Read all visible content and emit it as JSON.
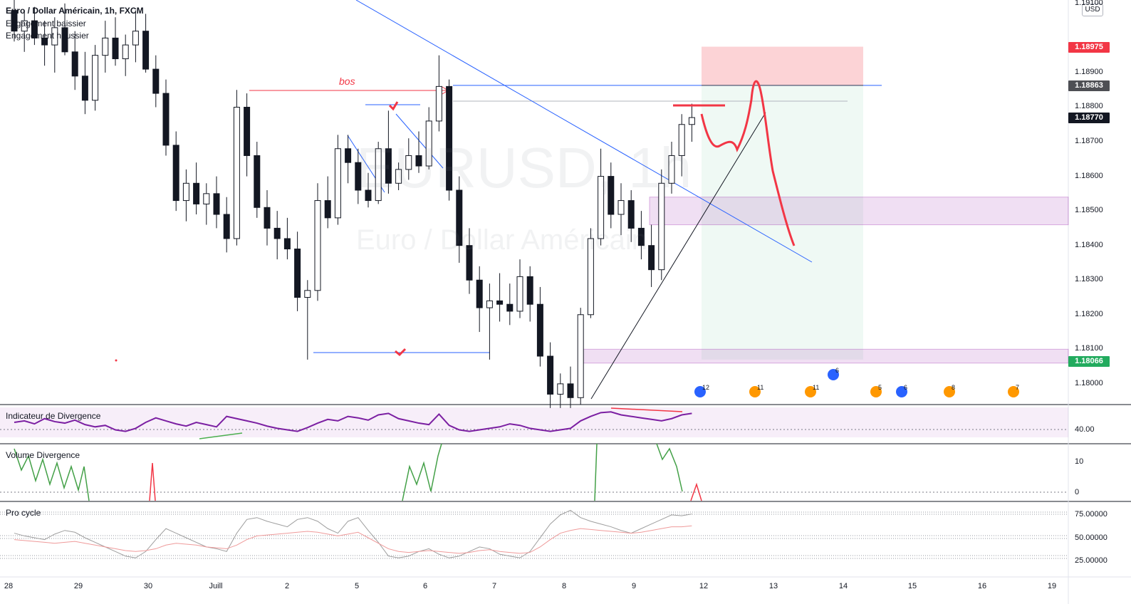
{
  "legend": {
    "title": "Euro / Dollar Américain, 1h, FXCM",
    "line2": "Engagement baissier",
    "line3": "Engagement haussier"
  },
  "watermark": {
    "symbol": "EURUSD, 1h",
    "name": "Euro / Dollar Américain"
  },
  "currency": "USD",
  "annotation": {
    "bos": "bos"
  },
  "price_tags": [
    {
      "label": "1.18975",
      "color": "#f23645"
    },
    {
      "label": "1.18863",
      "color": "#4e4f54"
    },
    {
      "label": "1.18770",
      "color": "#131722"
    },
    {
      "label": "1.18066",
      "color": "#22ab5e"
    }
  ],
  "panes": {
    "divergence": {
      "title": "Indicateur de Divergence",
      "level": "40.00"
    },
    "volume": {
      "title": "Volume Divergence",
      "levels": [
        "10",
        "0"
      ]
    },
    "procycle": {
      "title": "Pro cycle",
      "levels": [
        "75.00000",
        "50.00000",
        "25.00000"
      ]
    }
  },
  "events": [
    {
      "count": "12",
      "color": "#2962ff"
    },
    {
      "count": "11",
      "color": "#ff9800"
    },
    {
      "count": "11",
      "color": "#ff9800"
    },
    {
      "count": "6",
      "color": "#2962ff"
    },
    {
      "count": "5",
      "color": "#ff9800"
    },
    {
      "count": "6",
      "color": "#2962ff"
    },
    {
      "count": "8",
      "color": "#ff9800"
    },
    {
      "count": "7",
      "color": "#ff9800"
    }
  ],
  "chart_data": {
    "type": "candlestick",
    "symbol": "EURUSD",
    "timeframe": "1h",
    "y_axis": {
      "ticks": [
        "1.18000",
        "1.18100",
        "1.18200",
        "1.18300",
        "1.18400",
        "1.18500",
        "1.18600",
        "1.18700",
        "1.18800",
        "1.18900",
        "1.19100"
      ],
      "ylim": [
        1.1794,
        1.1911
      ]
    },
    "x_axis": {
      "ticks": [
        "28",
        "29",
        "30",
        "Juill",
        "2",
        "5",
        "6",
        "7",
        "8",
        "9",
        "12",
        "13",
        "14",
        "15",
        "16",
        "19"
      ]
    },
    "series": [
      {
        "x": 0,
        "o": 1.1908,
        "h": 1.1911,
        "l": 1.1899,
        "c": 1.1902
      },
      {
        "x": 1,
        "o": 1.1902,
        "h": 1.1908,
        "l": 1.1896,
        "c": 1.1905
      },
      {
        "x": 2,
        "o": 1.1905,
        "h": 1.1909,
        "l": 1.1898,
        "c": 1.19
      },
      {
        "x": 3,
        "o": 1.19,
        "h": 1.1905,
        "l": 1.1892,
        "c": 1.1898
      },
      {
        "x": 4,
        "o": 1.1898,
        "h": 1.1906,
        "l": 1.189,
        "c": 1.1903
      },
      {
        "x": 5,
        "o": 1.1903,
        "h": 1.191,
        "l": 1.1895,
        "c": 1.1896
      },
      {
        "x": 6,
        "o": 1.1896,
        "h": 1.1902,
        "l": 1.1885,
        "c": 1.1889
      },
      {
        "x": 7,
        "o": 1.1889,
        "h": 1.1896,
        "l": 1.1878,
        "c": 1.1882
      },
      {
        "x": 8,
        "o": 1.1882,
        "h": 1.1898,
        "l": 1.1879,
        "c": 1.1895
      },
      {
        "x": 9,
        "o": 1.1895,
        "h": 1.1905,
        "l": 1.189,
        "c": 1.19
      },
      {
        "x": 10,
        "o": 1.19,
        "h": 1.1906,
        "l": 1.1892,
        "c": 1.1894
      },
      {
        "x": 11,
        "o": 1.1894,
        "h": 1.1901,
        "l": 1.1889,
        "c": 1.1898
      },
      {
        "x": 12,
        "o": 1.1898,
        "h": 1.1908,
        "l": 1.1893,
        "c": 1.1902
      },
      {
        "x": 13,
        "o": 1.1902,
        "h": 1.1907,
        "l": 1.189,
        "c": 1.1891
      },
      {
        "x": 14,
        "o": 1.1891,
        "h": 1.1895,
        "l": 1.188,
        "c": 1.1884
      },
      {
        "x": 15,
        "o": 1.1884,
        "h": 1.1888,
        "l": 1.1866,
        "c": 1.1869
      },
      {
        "x": 16,
        "o": 1.1869,
        "h": 1.1873,
        "l": 1.185,
        "c": 1.1853
      },
      {
        "x": 17,
        "o": 1.1853,
        "h": 1.1862,
        "l": 1.1847,
        "c": 1.1858
      },
      {
        "x": 18,
        "o": 1.1858,
        "h": 1.1864,
        "l": 1.1849,
        "c": 1.1852
      },
      {
        "x": 19,
        "o": 1.1852,
        "h": 1.1858,
        "l": 1.1846,
        "c": 1.1855
      },
      {
        "x": 20,
        "o": 1.1855,
        "h": 1.186,
        "l": 1.1845,
        "c": 1.1849
      },
      {
        "x": 21,
        "o": 1.1849,
        "h": 1.1854,
        "l": 1.1838,
        "c": 1.1842
      },
      {
        "x": 22,
        "o": 1.1842,
        "h": 1.1885,
        "l": 1.184,
        "c": 1.188
      },
      {
        "x": 23,
        "o": 1.188,
        "h": 1.1884,
        "l": 1.186,
        "c": 1.1866
      },
      {
        "x": 24,
        "o": 1.1866,
        "h": 1.187,
        "l": 1.1848,
        "c": 1.1851
      },
      {
        "x": 25,
        "o": 1.1851,
        "h": 1.1856,
        "l": 1.184,
        "c": 1.1845
      },
      {
        "x": 26,
        "o": 1.1845,
        "h": 1.185,
        "l": 1.1836,
        "c": 1.1842
      },
      {
        "x": 27,
        "o": 1.1842,
        "h": 1.1848,
        "l": 1.1836,
        "c": 1.1839
      },
      {
        "x": 28,
        "o": 1.1839,
        "h": 1.1844,
        "l": 1.1821,
        "c": 1.1825
      },
      {
        "x": 29,
        "o": 1.1825,
        "h": 1.183,
        "l": 1.1807,
        "c": 1.1827
      },
      {
        "x": 30,
        "o": 1.1827,
        "h": 1.1858,
        "l": 1.1824,
        "c": 1.1853
      },
      {
        "x": 31,
        "o": 1.1853,
        "h": 1.186,
        "l": 1.1845,
        "c": 1.1848
      },
      {
        "x": 32,
        "o": 1.1848,
        "h": 1.1872,
        "l": 1.1846,
        "c": 1.1868
      },
      {
        "x": 33,
        "o": 1.1868,
        "h": 1.1872,
        "l": 1.1858,
        "c": 1.1864
      },
      {
        "x": 34,
        "o": 1.1864,
        "h": 1.1868,
        "l": 1.1852,
        "c": 1.1856
      },
      {
        "x": 35,
        "o": 1.1856,
        "h": 1.1861,
        "l": 1.1851,
        "c": 1.1853
      },
      {
        "x": 36,
        "o": 1.1853,
        "h": 1.187,
        "l": 1.1852,
        "c": 1.1868
      },
      {
        "x": 37,
        "o": 1.1868,
        "h": 1.1879,
        "l": 1.1855,
        "c": 1.1858
      },
      {
        "x": 38,
        "o": 1.1858,
        "h": 1.1864,
        "l": 1.1856,
        "c": 1.1862
      },
      {
        "x": 39,
        "o": 1.1862,
        "h": 1.1871,
        "l": 1.1859,
        "c": 1.1866
      },
      {
        "x": 40,
        "o": 1.1866,
        "h": 1.1873,
        "l": 1.1861,
        "c": 1.1863
      },
      {
        "x": 41,
        "o": 1.1863,
        "h": 1.188,
        "l": 1.1862,
        "c": 1.1876
      },
      {
        "x": 42,
        "o": 1.1876,
        "h": 1.1895,
        "l": 1.1873,
        "c": 1.1886
      },
      {
        "x": 43,
        "o": 1.1886,
        "h": 1.1888,
        "l": 1.1853,
        "c": 1.1856
      },
      {
        "x": 44,
        "o": 1.1856,
        "h": 1.186,
        "l": 1.1835,
        "c": 1.184
      },
      {
        "x": 45,
        "o": 1.184,
        "h": 1.1845,
        "l": 1.1826,
        "c": 1.183
      },
      {
        "x": 46,
        "o": 1.183,
        "h": 1.1834,
        "l": 1.1815,
        "c": 1.1822
      },
      {
        "x": 47,
        "o": 1.1822,
        "h": 1.1829,
        "l": 1.1807,
        "c": 1.1824
      },
      {
        "x": 48,
        "o": 1.1824,
        "h": 1.1832,
        "l": 1.1818,
        "c": 1.1823
      },
      {
        "x": 49,
        "o": 1.1823,
        "h": 1.1829,
        "l": 1.1817,
        "c": 1.1821
      },
      {
        "x": 50,
        "o": 1.1821,
        "h": 1.1836,
        "l": 1.1819,
        "c": 1.1831
      },
      {
        "x": 51,
        "o": 1.1831,
        "h": 1.1834,
        "l": 1.1818,
        "c": 1.1823
      },
      {
        "x": 52,
        "o": 1.1823,
        "h": 1.1828,
        "l": 1.1805,
        "c": 1.1808
      },
      {
        "x": 53,
        "o": 1.1808,
        "h": 1.1812,
        "l": 1.1793,
        "c": 1.1797
      },
      {
        "x": 54,
        "o": 1.1797,
        "h": 1.1803,
        "l": 1.1793,
        "c": 1.18
      },
      {
        "x": 55,
        "o": 1.18,
        "h": 1.1805,
        "l": 1.1793,
        "c": 1.1796
      },
      {
        "x": 56,
        "o": 1.1796,
        "h": 1.1822,
        "l": 1.1794,
        "c": 1.182
      },
      {
        "x": 57,
        "o": 1.182,
        "h": 1.1845,
        "l": 1.1819,
        "c": 1.1842
      },
      {
        "x": 58,
        "o": 1.1842,
        "h": 1.1868,
        "l": 1.184,
        "c": 1.186
      },
      {
        "x": 59,
        "o": 1.186,
        "h": 1.1864,
        "l": 1.1845,
        "c": 1.1849
      },
      {
        "x": 60,
        "o": 1.1849,
        "h": 1.1858,
        "l": 1.1843,
        "c": 1.1853
      },
      {
        "x": 61,
        "o": 1.1853,
        "h": 1.1856,
        "l": 1.1841,
        "c": 1.1845
      },
      {
        "x": 62,
        "o": 1.1845,
        "h": 1.185,
        "l": 1.1836,
        "c": 1.184
      },
      {
        "x": 63,
        "o": 1.184,
        "h": 1.1846,
        "l": 1.1828,
        "c": 1.1833
      },
      {
        "x": 64,
        "o": 1.1833,
        "h": 1.1862,
        "l": 1.183,
        "c": 1.1858
      },
      {
        "x": 65,
        "o": 1.1858,
        "h": 1.187,
        "l": 1.1855,
        "c": 1.1866
      },
      {
        "x": 66,
        "o": 1.1866,
        "h": 1.1878,
        "l": 1.186,
        "c": 1.1875
      },
      {
        "x": 67,
        "o": 1.1875,
        "h": 1.1881,
        "l": 1.187,
        "c": 1.1877
      }
    ],
    "horizontal_levels": [
      {
        "name": "resistance",
        "value": 1.18863
      },
      {
        "name": "support",
        "value": 1.1807
      }
    ],
    "zones": [
      {
        "name": "stop-loss-zone",
        "from": 1.18863,
        "to": 1.18975,
        "color": "#f23645"
      },
      {
        "name": "take-profit-zone",
        "from": 1.1807,
        "to": 1.18863,
        "color": "#22ab5e"
      },
      {
        "name": "supply-zone",
        "from": 1.1846,
        "to": 1.1854,
        "color": "#9c27b0"
      },
      {
        "name": "demand-zone",
        "from": 1.1806,
        "to": 1.181,
        "color": "#9c27b0"
      }
    ],
    "indicators": {
      "divergence": [
        50,
        52,
        48,
        55,
        51,
        49,
        53,
        47,
        44,
        46,
        40,
        38,
        42,
        50,
        56,
        52,
        48,
        45,
        50,
        47,
        44,
        58,
        55,
        52,
        49,
        45,
        42,
        40,
        38,
        43,
        49,
        54,
        52,
        58,
        56,
        53,
        60,
        62,
        55,
        52,
        49,
        47,
        61,
        46,
        40,
        38,
        40,
        42,
        44,
        48,
        46,
        42,
        40,
        38,
        40,
        42,
        52,
        58,
        63,
        64,
        60,
        58,
        56,
        54,
        52,
        55,
        60,
        62
      ],
      "procycle_gray": [
        55,
        52,
        50,
        48,
        54,
        58,
        56,
        50,
        45,
        40,
        35,
        30,
        28,
        35,
        48,
        60,
        55,
        50,
        45,
        40,
        38,
        35,
        55,
        70,
        72,
        68,
        65,
        62,
        70,
        72,
        68,
        60,
        55,
        68,
        72,
        58,
        45,
        30,
        28,
        30,
        35,
        38,
        32,
        28,
        30,
        35,
        40,
        38,
        32,
        30,
        28,
        35,
        50,
        65,
        75,
        80,
        72,
        68,
        65,
        62,
        58,
        55,
        60,
        65,
        70,
        75,
        74,
        76
      ],
      "procycle_red": [
        48,
        47,
        46,
        45,
        44,
        45,
        46,
        44,
        42,
        40,
        38,
        36,
        35,
        36,
        38,
        42,
        44,
        43,
        42,
        40,
        39,
        38,
        42,
        48,
        52,
        53,
        54,
        55,
        56,
        57,
        56,
        54,
        52,
        54,
        56,
        50,
        44,
        38,
        35,
        34,
        35,
        36,
        35,
        34,
        33,
        34,
        36,
        37,
        35,
        34,
        33,
        34,
        40,
        48,
        55,
        58,
        60,
        59,
        58,
        57,
        56,
        55,
        56,
        58,
        60,
        62,
        62,
        63
      ]
    }
  }
}
